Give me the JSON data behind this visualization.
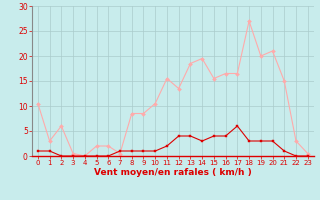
{
  "x": [
    0,
    1,
    2,
    3,
    4,
    5,
    6,
    7,
    8,
    9,
    10,
    11,
    12,
    13,
    14,
    15,
    16,
    17,
    18,
    19,
    20,
    21,
    22,
    23
  ],
  "wind_avg": [
    1,
    1,
    0,
    0,
    0,
    0,
    0,
    1,
    1,
    1,
    1,
    2,
    4,
    4,
    3,
    4,
    4,
    6,
    3,
    3,
    3,
    1,
    0,
    0
  ],
  "wind_gust": [
    10.5,
    3,
    6,
    0.5,
    0,
    2,
    2,
    0.5,
    8.5,
    8.5,
    10.5,
    15.5,
    13.5,
    18.5,
    19.5,
    15.5,
    16.5,
    16.5,
    27,
    20,
    21,
    15,
    3,
    0.5
  ],
  "xlabel": "Vent moyen/en rafales ( km/h )",
  "ylim": [
    0,
    30
  ],
  "yticks": [
    0,
    5,
    10,
    15,
    20,
    25,
    30
  ],
  "xlim": [
    -0.5,
    23.5
  ],
  "bg_color": "#c8ecec",
  "line_avg_color": "#dd0000",
  "line_gust_color": "#ffaaaa",
  "grid_color": "#aacccc",
  "xlabel_color": "#dd0000",
  "tick_label_color": "#dd0000",
  "spine_color": "#dd0000",
  "left_spine_color": "#888888"
}
